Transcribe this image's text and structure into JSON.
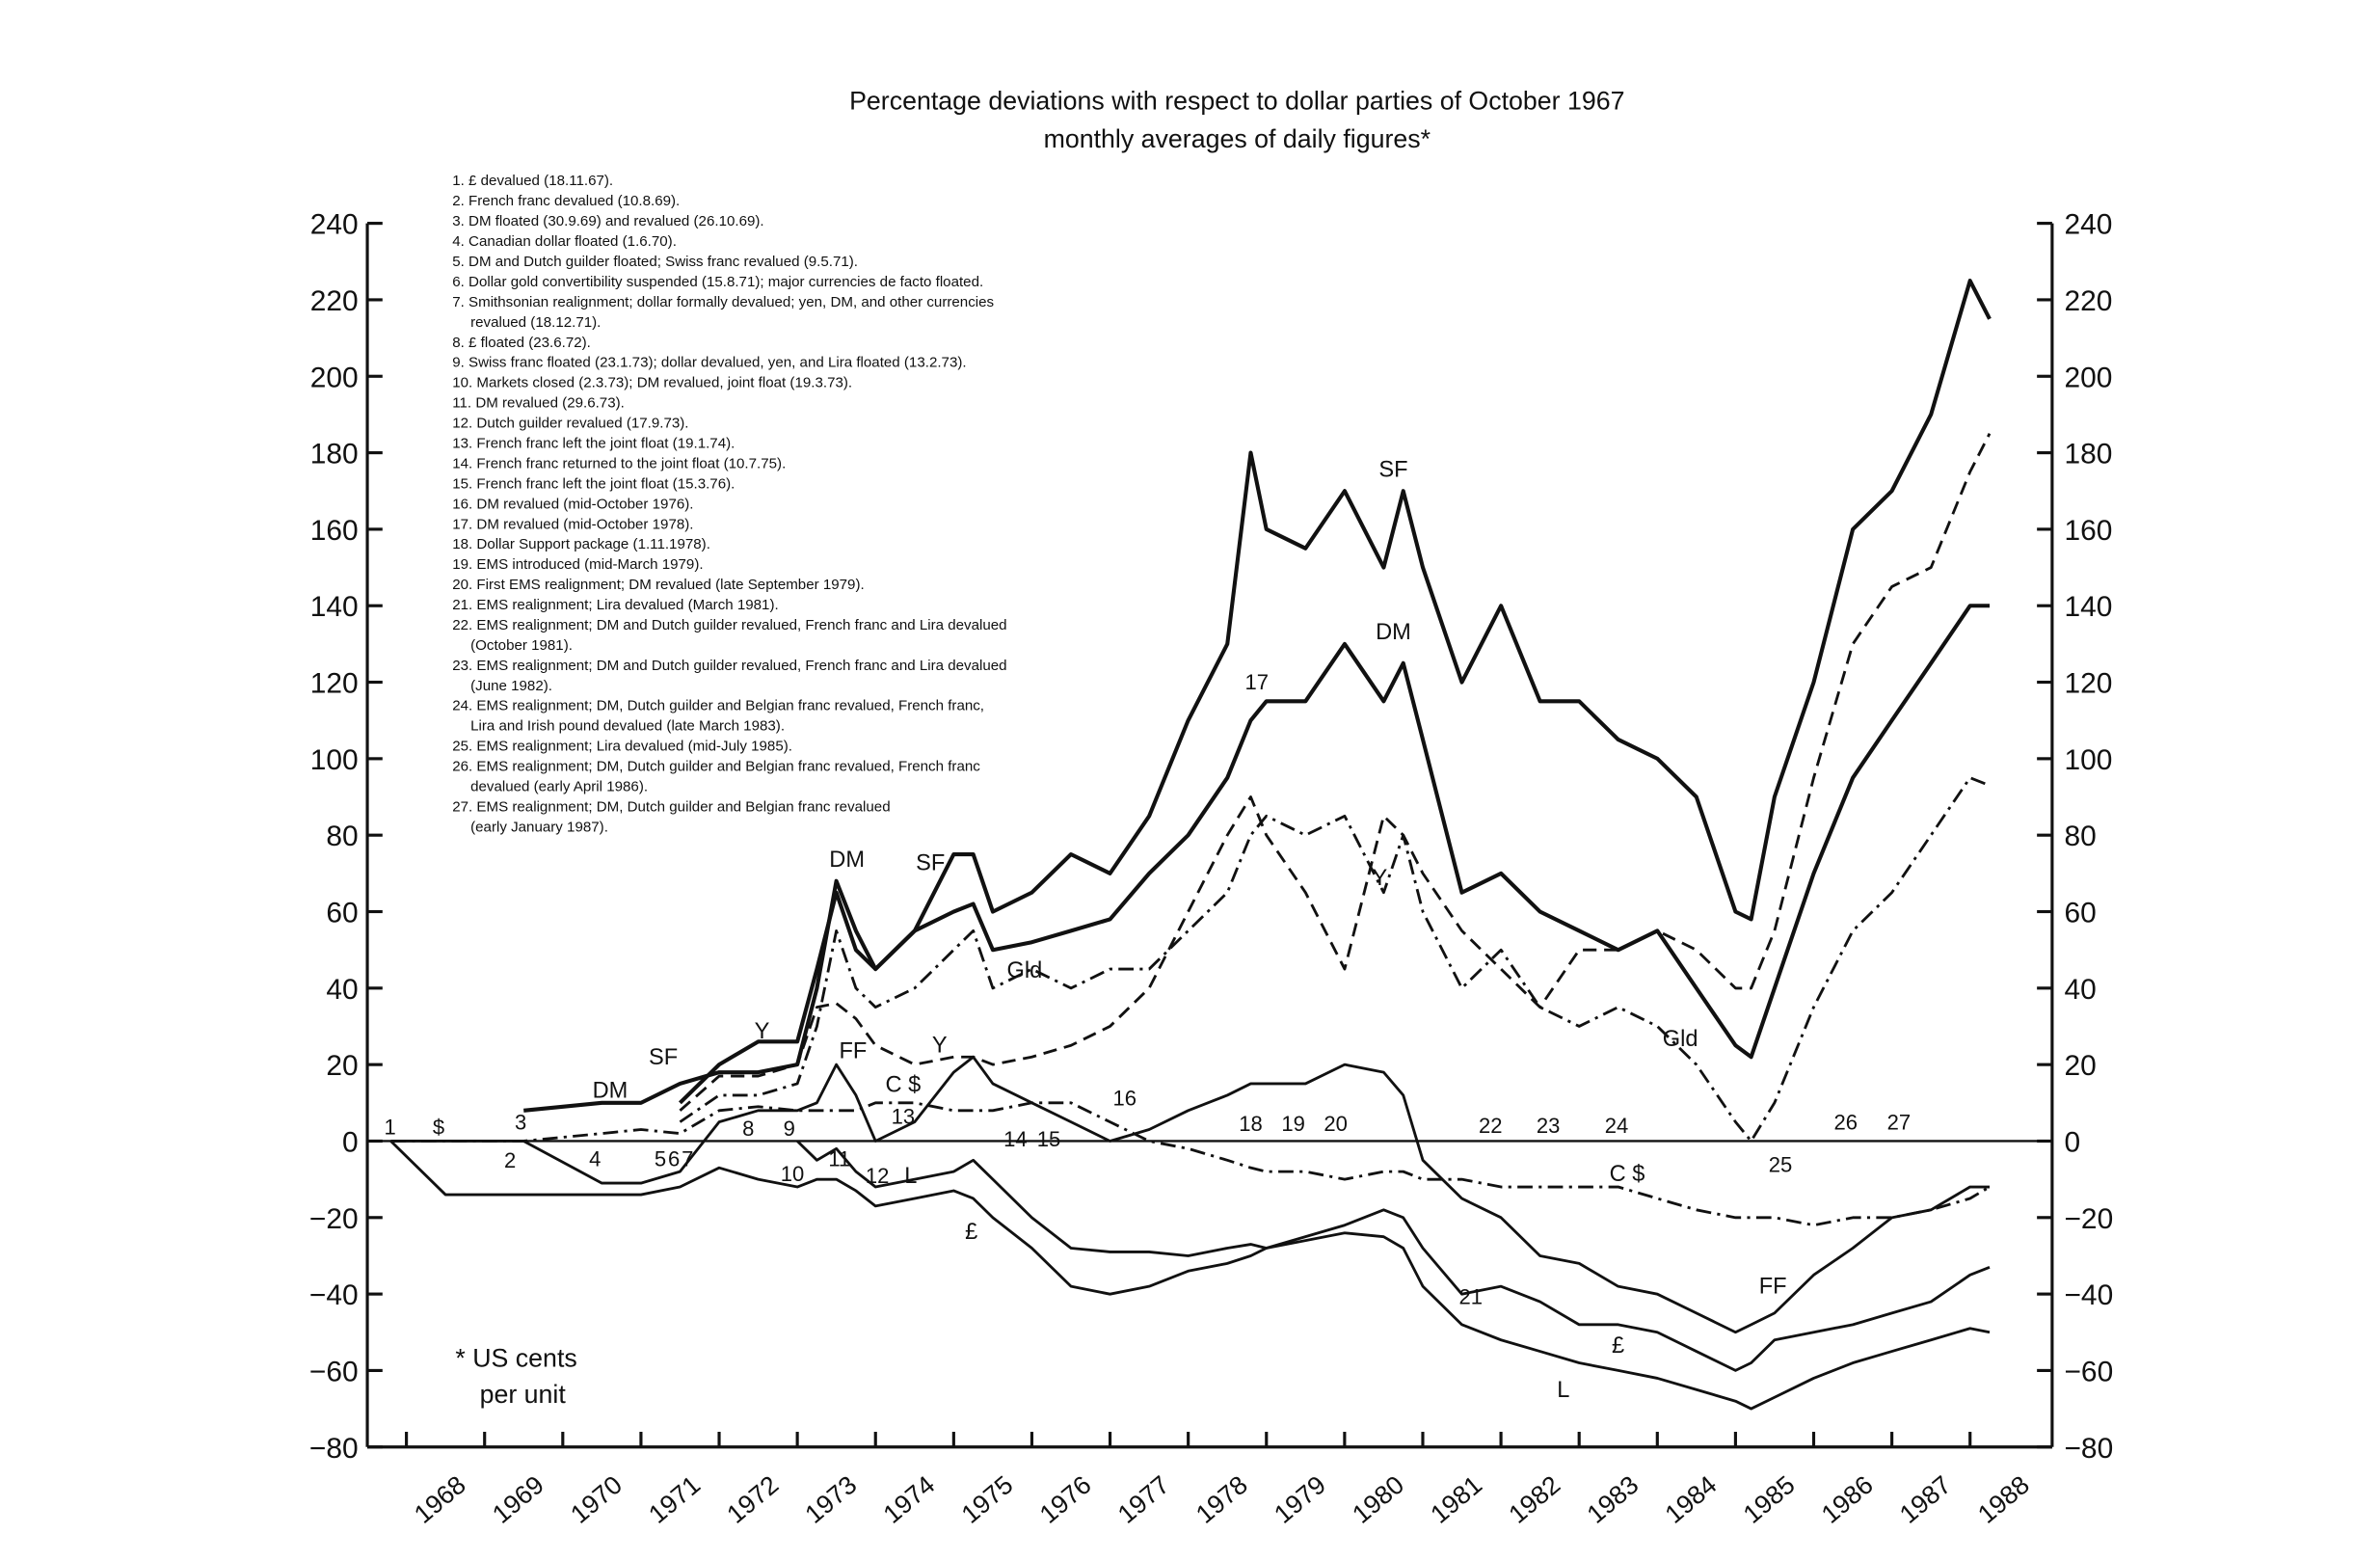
{
  "chart_data": {
    "type": "line",
    "title": "Percentage deviations with respect to dollar parties of October 1967",
    "subtitle": "monthly averages of daily figures*",
    "footnote": [
      "* US cents",
      "per unit"
    ],
    "xlim": [
      1967.5,
      1989.05
    ],
    "xticks": [
      1968,
      1969,
      1970,
      1971,
      1972,
      1973,
      1974,
      1975,
      1976,
      1977,
      1978,
      1979,
      1980,
      1981,
      1982,
      1983,
      1984,
      1985,
      1986,
      1987,
      1988
    ],
    "ylim": [
      -80,
      240
    ],
    "yticks": [
      {
        "value": -80,
        "label": "−80"
      },
      {
        "value": -60,
        "label": "−60"
      },
      {
        "value": -40,
        "label": "−40"
      },
      {
        "value": -20,
        "label": "−20"
      },
      0,
      20,
      40,
      60,
      80,
      100,
      120,
      140,
      160,
      180,
      200,
      220,
      240
    ],
    "x": [
      1967.8,
      1968.5,
      1969.5,
      1970.5,
      1971.0,
      1971.5,
      1972.0,
      1972.5,
      1973.0,
      1973.25,
      1973.5,
      1973.75,
      1974.0,
      1974.5,
      1975.0,
      1975.25,
      1975.5,
      1976.0,
      1976.5,
      1977.0,
      1977.5,
      1978.0,
      1978.5,
      1978.8,
      1979.0,
      1979.5,
      1980.0,
      1980.5,
      1980.75,
      1981.0,
      1981.5,
      1982.0,
      1982.5,
      1983.0,
      1983.5,
      1984.0,
      1984.5,
      1985.0,
      1985.2,
      1985.5,
      1986.0,
      1986.5,
      1987.0,
      1987.5,
      1988.0,
      1988.25
    ],
    "series": [
      {
        "name": "SF",
        "color": "#111111",
        "style": "solid",
        "values": [
          null,
          null,
          null,
          null,
          null,
          10,
          20,
          26,
          26,
          45,
          65,
          50,
          45,
          55,
          75,
          75,
          60,
          65,
          75,
          70,
          85,
          110,
          130,
          180,
          160,
          155,
          170,
          150,
          170,
          150,
          120,
          140,
          115,
          115,
          105,
          100,
          90,
          60,
          58,
          90,
          120,
          160,
          170,
          190,
          225,
          215
        ]
      },
      {
        "name": "DM",
        "color": "#111111",
        "style": "solid",
        "values": [
          null,
          null,
          8,
          10,
          10,
          15,
          18,
          18,
          20,
          40,
          68,
          55,
          45,
          55,
          60,
          62,
          50,
          52,
          55,
          58,
          70,
          80,
          95,
          110,
          115,
          115,
          130,
          115,
          125,
          105,
          65,
          70,
          60,
          55,
          50,
          55,
          40,
          25,
          22,
          40,
          70,
          95,
          110,
          125,
          140,
          140
        ]
      },
      {
        "name": "Y",
        "color": "#111111",
        "style": "dashed",
        "values": [
          null,
          null,
          null,
          null,
          null,
          8,
          17,
          17,
          20,
          35,
          36,
          32,
          25,
          20,
          22,
          22,
          20,
          22,
          25,
          30,
          40,
          60,
          80,
          90,
          80,
          65,
          45,
          85,
          80,
          70,
          55,
          45,
          35,
          50,
          50,
          55,
          50,
          40,
          40,
          55,
          95,
          130,
          145,
          150,
          175,
          185
        ]
      },
      {
        "name": "Gld",
        "color": "#111111",
        "style": "dashdot",
        "values": [
          null,
          null,
          null,
          null,
          null,
          5,
          12,
          12,
          15,
          30,
          55,
          40,
          35,
          40,
          50,
          55,
          40,
          45,
          40,
          45,
          45,
          55,
          65,
          80,
          85,
          80,
          85,
          65,
          80,
          60,
          40,
          50,
          35,
          30,
          35,
          30,
          20,
          5,
          0,
          10,
          35,
          55,
          65,
          80,
          95,
          93
        ]
      },
      {
        "name": "FF",
        "color": "#111111",
        "style": "solid",
        "values": [
          0,
          0,
          0,
          -11,
          -11,
          -8,
          5,
          8,
          8,
          10,
          20,
          12,
          0,
          5,
          18,
          22,
          15,
          10,
          5,
          0,
          3,
          8,
          12,
          15,
          15,
          15,
          20,
          18,
          12,
          -5,
          -15,
          -20,
          -30,
          -32,
          -38,
          -40,
          -45,
          -50,
          -48,
          -45,
          -35,
          -28,
          -20,
          -18,
          -12,
          -12
        ]
      },
      {
        "name": "C $",
        "color": "#111111",
        "style": "dashdot",
        "values": [
          0,
          0,
          0,
          2,
          3,
          2,
          8,
          9,
          8,
          8,
          8,
          8,
          10,
          10,
          8,
          8,
          8,
          10,
          10,
          5,
          0,
          -2,
          -5,
          -7,
          -8,
          -8,
          -10,
          -8,
          -8,
          -10,
          -10,
          -12,
          -12,
          -12,
          -12,
          -15,
          -18,
          -20,
          -20,
          -20,
          -22,
          -20,
          -20,
          -18,
          -15,
          -12
        ]
      },
      {
        "name": "£",
        "color": "#111111",
        "style": "solid",
        "values": [
          0,
          -14,
          -14,
          -14,
          -14,
          -12,
          -7,
          -10,
          -12,
          -10,
          -10,
          -13,
          -17,
          -15,
          -13,
          -15,
          -20,
          -28,
          -38,
          -40,
          -38,
          -34,
          -32,
          -30,
          -28,
          -25,
          -22,
          -18,
          -20,
          -28,
          -40,
          -38,
          -42,
          -48,
          -48,
          -50,
          -55,
          -60,
          -58,
          -52,
          -50,
          -48,
          -45,
          -42,
          -35,
          -33
        ]
      },
      {
        "name": "L",
        "color": "#111111",
        "style": "solid",
        "values": [
          null,
          null,
          null,
          null,
          null,
          null,
          null,
          null,
          0,
          -5,
          -2,
          -8,
          -12,
          -10,
          -8,
          -5,
          -10,
          -20,
          -28,
          -29,
          -29,
          -30,
          -28,
          -27,
          -28,
          -26,
          -24,
          -25,
          -28,
          -38,
          -48,
          -52,
          -55,
          -58,
          -60,
          -62,
          -65,
          -68,
          -70,
          -67,
          -62,
          -58,
          -55,
          -52,
          -49,
          -50
        ]
      }
    ],
    "event_labels": [
      "1",
      "$",
      "2",
      "3",
      "4",
      "5",
      "6",
      "7",
      "8",
      "9",
      "10",
      "11",
      "12",
      "13",
      "14",
      "15",
      "16",
      "17",
      "18",
      "19",
      "20",
      "21",
      "22",
      "23",
      "24",
      "25",
      "26",
      "27"
    ],
    "notes": [
      [
        "1. £ devalued (18.11.67)."
      ],
      [
        "2. French franc devalued (10.8.69)."
      ],
      [
        "3. DM floated (30.9.69) and revalued (26.10.69)."
      ],
      [
        "4. Canadian dollar floated (1.6.70)."
      ],
      [
        "5. DM and Dutch guilder floated; Swiss franc revalued (9.5.71)."
      ],
      [
        "6. Dollar gold convertibility suspended (15.8.71); major currencies de facto floated."
      ],
      [
        "7. Smithsonian realignment; dollar formally devalued; yen, DM, and other currencies",
        "revalued (18.12.71)."
      ],
      [
        "8. £ floated (23.6.72)."
      ],
      [
        "9. Swiss franc floated (23.1.73); dollar devalued, yen, and Lira floated (13.2.73)."
      ],
      [
        "10. Markets closed (2.3.73); DM revalued, joint float (19.3.73)."
      ],
      [
        "11. DM revalued (29.6.73)."
      ],
      [
        "12. Dutch guilder revalued (17.9.73)."
      ],
      [
        "13. French franc left the joint float (19.1.74)."
      ],
      [
        "14. French franc returned to the joint float (10.7.75)."
      ],
      [
        "15. French franc left the joint float (15.3.76)."
      ],
      [
        "16. DM revalued (mid-October 1976)."
      ],
      [
        "17. DM revalued (mid-October 1978)."
      ],
      [
        "18. Dollar Support package (1.11.1978)."
      ],
      [
        "19. EMS introduced (mid-March 1979)."
      ],
      [
        "20. First EMS realignment; DM revalued (late September 1979)."
      ],
      [
        "21. EMS realignment; Lira devalued (March 1981)."
      ],
      [
        "22. EMS realignment; DM and Dutch guilder revalued, French franc and Lira devalued",
        "(October 1981)."
      ],
      [
        "23. EMS realignment; DM and Dutch guilder revalued, French franc and Lira devalued",
        "(June 1982)."
      ],
      [
        "24. EMS realignment; DM, Dutch guilder and Belgian franc revalued, French franc,",
        "Lira and Irish pound devalued (late March 1983)."
      ],
      [
        "25. EMS realignment; Lira devalued (mid-July 1985)."
      ],
      [
        "26. EMS realignment; DM, Dutch guilder and Belgian franc revalued, French franc",
        "devalued (early April 1986)."
      ],
      [
        "27. EMS realignment; DM, Dutch guilder and Belgian franc revalued",
        "(early January 1987)."
      ]
    ]
  }
}
